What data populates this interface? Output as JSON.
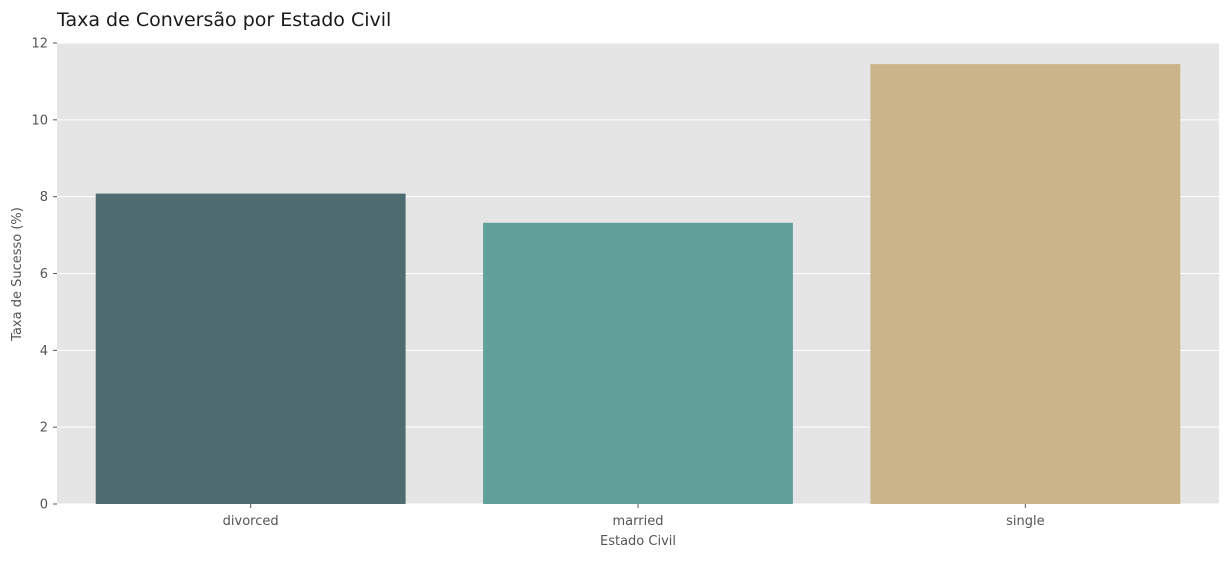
{
  "chart_data": {
    "type": "bar",
    "title": "Taxa de Conversão por Estado Civil",
    "xlabel": "Estado Civil",
    "ylabel": "Taxa de Sucesso (%)",
    "categories": [
      "divorced",
      "married",
      "single"
    ],
    "values": [
      8.08,
      7.32,
      11.45
    ],
    "colors": [
      "#4e6b70",
      "#62a199",
      "#cbb48a"
    ],
    "ylim": [
      0,
      12
    ],
    "yticks": [
      0,
      2,
      4,
      6,
      8,
      10,
      12
    ],
    "grid": true,
    "background": "#e5e5e5"
  }
}
